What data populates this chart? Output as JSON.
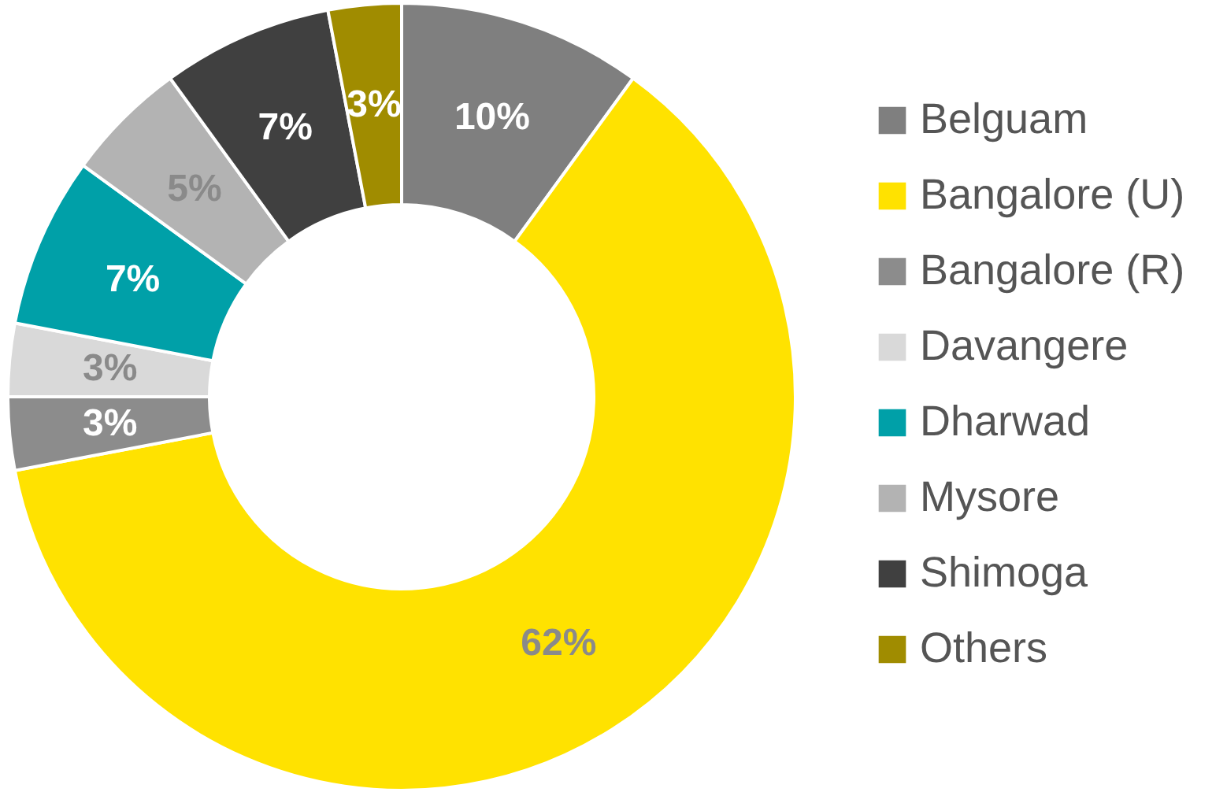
{
  "chart_data": {
    "type": "donut",
    "categories": [
      "Belguam",
      "Bangalore (U)",
      "Bangalore (R)",
      "Davangere",
      "Dharwad",
      "Mysore",
      "Shimoga",
      "Others"
    ],
    "values": [
      10,
      62,
      3,
      3,
      7,
      5,
      7,
      3
    ],
    "colors": [
      "#7f7f7f",
      "#ffe200",
      "#8c8c8c",
      "#d9d9d9",
      "#00a0a8",
      "#b3b3b3",
      "#404040",
      "#a08c00"
    ],
    "value_labels": [
      "10%",
      "62%",
      "3%",
      "3%",
      "7%",
      "5%",
      "7%",
      "3%"
    ],
    "legend": "right"
  }
}
